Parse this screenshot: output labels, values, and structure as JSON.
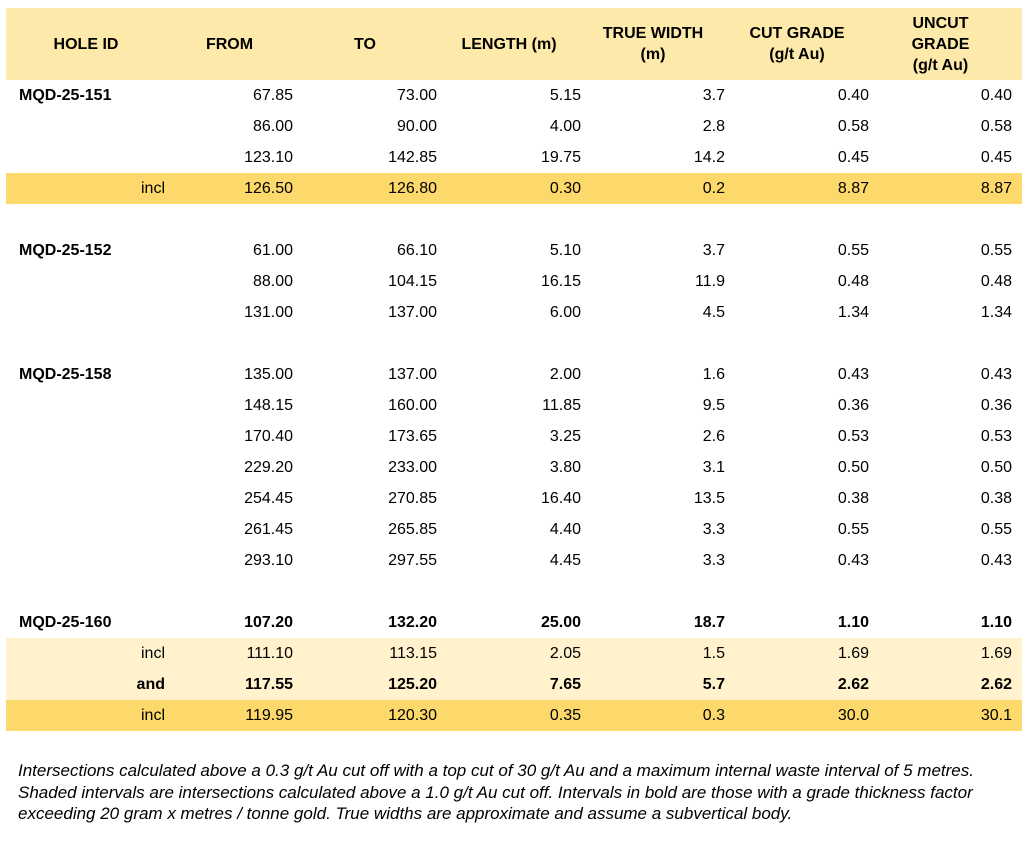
{
  "headers": [
    "HOLE ID",
    "FROM",
    "TO",
    "LENGTH (m)",
    "TRUE WIDTH\n(m)",
    "CUT GRADE\n(g/t Au)",
    "UNCUT\nGRADE\n(g/t Au)"
  ],
  "rows": [
    {
      "hole": "MQD-25-151",
      "from": "67.85",
      "to": "73.00",
      "length": "5.15",
      "true_width": "3.7",
      "cut": "0.40",
      "uncut": "0.40"
    },
    {
      "hole": "",
      "from": "86.00",
      "to": "90.00",
      "length": "4.00",
      "true_width": "2.8",
      "cut": "0.58",
      "uncut": "0.58"
    },
    {
      "hole": "",
      "from": "123.10",
      "to": "142.85",
      "length": "19.75",
      "true_width": "14.2",
      "cut": "0.45",
      "uncut": "0.45"
    },
    {
      "hole": "incl",
      "from": "126.50",
      "to": "126.80",
      "length": "0.30",
      "true_width": "0.2",
      "cut": "8.87",
      "uncut": "8.87"
    },
    {
      "hole": "MQD-25-152",
      "from": "61.00",
      "to": "66.10",
      "length": "5.10",
      "true_width": "3.7",
      "cut": "0.55",
      "uncut": "0.55"
    },
    {
      "hole": "",
      "from": "88.00",
      "to": "104.15",
      "length": "16.15",
      "true_width": "11.9",
      "cut": "0.48",
      "uncut": "0.48"
    },
    {
      "hole": "",
      "from": "131.00",
      "to": "137.00",
      "length": "6.00",
      "true_width": "4.5",
      "cut": "1.34",
      "uncut": "1.34"
    },
    {
      "hole": "MQD-25-158",
      "from": "135.00",
      "to": "137.00",
      "length": "2.00",
      "true_width": "1.6",
      "cut": "0.43",
      "uncut": "0.43"
    },
    {
      "hole": "",
      "from": "148.15",
      "to": "160.00",
      "length": "11.85",
      "true_width": "9.5",
      "cut": "0.36",
      "uncut": "0.36"
    },
    {
      "hole": "",
      "from": "170.40",
      "to": "173.65",
      "length": "3.25",
      "true_width": "2.6",
      "cut": "0.53",
      "uncut": "0.53"
    },
    {
      "hole": "",
      "from": "229.20",
      "to": "233.00",
      "length": "3.80",
      "true_width": "3.1",
      "cut": "0.50",
      "uncut": "0.50"
    },
    {
      "hole": "",
      "from": "254.45",
      "to": "270.85",
      "length": "16.40",
      "true_width": "13.5",
      "cut": "0.38",
      "uncut": "0.38"
    },
    {
      "hole": "",
      "from": "261.45",
      "to": "265.85",
      "length": "4.40",
      "true_width": "3.3",
      "cut": "0.55",
      "uncut": "0.55"
    },
    {
      "hole": "",
      "from": "293.10",
      "to": "297.55",
      "length": "4.45",
      "true_width": "3.3",
      "cut": "0.43",
      "uncut": "0.43"
    },
    {
      "hole": "MQD-25-160",
      "from": "107.20",
      "to": "132.20",
      "length": "25.00",
      "true_width": "18.7",
      "cut": "1.10",
      "uncut": "1.10"
    },
    {
      "hole": "incl",
      "from": "111.10",
      "to": "113.15",
      "length": "2.05",
      "true_width": "1.5",
      "cut": "1.69",
      "uncut": "1.69"
    },
    {
      "hole": "and",
      "from": "117.55",
      "to": "125.20",
      "length": "7.65",
      "true_width": "5.7",
      "cut": "2.62",
      "uncut": "2.62"
    },
    {
      "hole": "incl",
      "from": "119.95",
      "to": "120.30",
      "length": "0.35",
      "true_width": "0.3",
      "cut": "30.0",
      "uncut": "30.1"
    }
  ],
  "colors": {
    "header_bg": "#fde9a9",
    "dark_highlight": "#fdd86a",
    "light_highlight": "#fff2cc"
  },
  "footnote": "Intersections calculated above a 0.3 g/t Au cut off with a top cut of 30 g/t Au and a maximum internal waste interval of 5 metres. Shaded intervals are intersections calculated above a 1.0 g/t Au cut off. Intervals in bold are those with a grade thickness factor exceeding 20 gram x metres / tonne gold. True widths are approximate and assume a subvertical body."
}
